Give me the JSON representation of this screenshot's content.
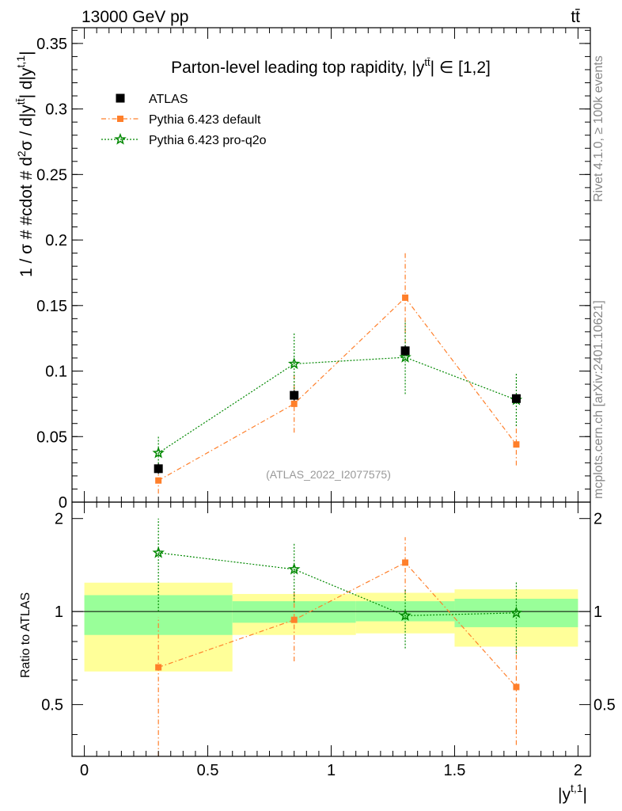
{
  "header": {
    "energy_label": "13000 GeV pp",
    "process_label": "tt̄"
  },
  "side": {
    "rivet_label": "Rivet 4.1.0, ≥ 100k events",
    "site_label": "mcplots.cern.ch [arXiv:2401.10621]"
  },
  "colors": {
    "atlas": "#000000",
    "pythia_default": "#ff7f2a",
    "pythia_proq2o": "#008800",
    "band_inner": "#99ff99",
    "band_outer": "#ffff99"
  },
  "chart_data": [
    {
      "type": "scatter",
      "panel": "main",
      "title": "Parton-level leading top rapidity, |y^tt̄| ∈ [1,2]",
      "ylabel": "1 / σ # #cdot # d²σ / d|y^tt̄| d|y^t,1|",
      "xlim": [
        -0.05,
        2.05
      ],
      "ylim": [
        0,
        0.362
      ],
      "yticks": [
        0,
        0.05,
        0.1,
        0.15,
        0.2,
        0.25,
        0.3,
        0.35
      ],
      "ytick_labels": [
        "0",
        "0.05",
        "0.1",
        "0.15",
        "0.2",
        "0.25",
        "0.3",
        "0.35"
      ],
      "watermark": "(ATLAS_2022_I2077575)",
      "legend": [
        "ATLAS",
        "Pythia 6.423 default",
        "Pythia 6.423 pro-q2o"
      ],
      "series": [
        {
          "name": "ATLAS",
          "x": [
            0.3,
            0.85,
            1.3,
            1.75
          ],
          "values": [
            0.0255,
            0.0815,
            0.1155,
            0.079
          ],
          "err": [
            0.004,
            0.004,
            0.004,
            0.003
          ]
        },
        {
          "name": "Pythia 6.423 default",
          "x": [
            0.3,
            0.85,
            1.3,
            1.75
          ],
          "values": [
            0.0165,
            0.075,
            0.156,
            0.044
          ],
          "err": [
            0.01,
            0.022,
            0.035,
            0.016
          ]
        },
        {
          "name": "Pythia 6.423 pro-q2o",
          "x": [
            0.3,
            0.85,
            1.3,
            1.75
          ],
          "values": [
            0.0375,
            0.1055,
            0.1105,
            0.078
          ],
          "err": [
            0.013,
            0.024,
            0.028,
            0.02
          ]
        }
      ]
    },
    {
      "type": "scatter",
      "panel": "ratio",
      "xlabel": "|y^t,1|",
      "ylabel": "Ratio to ATLAS",
      "xlim": [
        -0.05,
        2.05
      ],
      "ylim": [
        0.34,
        2.26
      ],
      "xticks": [
        0,
        0.5,
        1,
        1.5,
        2
      ],
      "xtick_labels": [
        "0",
        "0.5",
        "1",
        "1.5",
        "2"
      ],
      "yticks": [
        0.5,
        1,
        2
      ],
      "ytick_labels": [
        "0.5",
        "1",
        "2"
      ],
      "bands": [
        {
          "x0": 0.0,
          "x1": 0.6,
          "inner": [
            0.84,
            1.13
          ],
          "outer": [
            0.64,
            1.24
          ]
        },
        {
          "x0": 0.6,
          "x1": 1.1,
          "inner": [
            0.92,
            1.08
          ],
          "outer": [
            0.84,
            1.14
          ]
        },
        {
          "x0": 1.1,
          "x1": 1.5,
          "inner": [
            0.93,
            1.08
          ],
          "outer": [
            0.85,
            1.15
          ]
        },
        {
          "x0": 1.5,
          "x1": 2.0,
          "inner": [
            0.89,
            1.1
          ],
          "outer": [
            0.77,
            1.18
          ]
        }
      ],
      "series": [
        {
          "name": "Pythia 6.423 default",
          "x": [
            0.3,
            0.85,
            1.3,
            1.75
          ],
          "values": [
            0.66,
            0.94,
            1.44,
            0.57
          ],
          "err_lo": [
            0.38,
            0.25,
            0.3,
            0.2
          ],
          "err_hi": [
            0.3,
            0.25,
            0.3,
            0.2
          ]
        },
        {
          "name": "Pythia 6.423 pro-q2o",
          "x": [
            0.3,
            0.85,
            1.3,
            1.75
          ],
          "values": [
            1.55,
            1.37,
            0.97,
            0.99
          ],
          "err_lo": [
            0.55,
            0.3,
            0.21,
            0.26
          ],
          "err_hi": [
            0.45,
            0.29,
            0.21,
            0.26
          ]
        }
      ]
    }
  ]
}
